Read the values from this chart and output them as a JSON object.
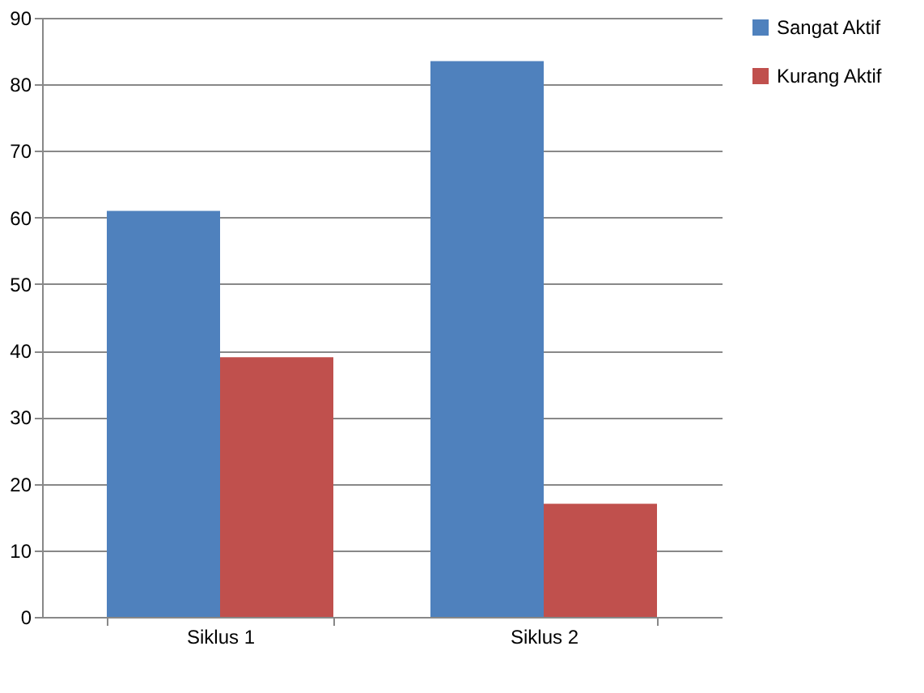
{
  "chart_data": {
    "type": "bar",
    "categories": [
      "Siklus 1",
      "Siklus 2"
    ],
    "series": [
      {
        "name": "Sangat Aktif",
        "color": "#4f81bd",
        "values": [
          61,
          83.5
        ]
      },
      {
        "name": "Kurang Aktif",
        "color": "#c0504d",
        "values": [
          39,
          17
        ]
      }
    ],
    "ylim": [
      0,
      90
    ],
    "yticks": [
      0,
      10,
      20,
      30,
      40,
      50,
      60,
      70,
      80,
      90
    ],
    "grid": "y",
    "legend": "right"
  }
}
